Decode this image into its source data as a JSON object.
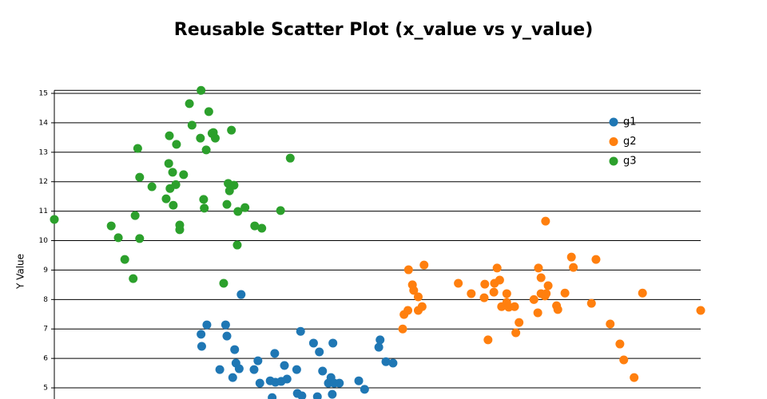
{
  "chart_data": {
    "type": "scatter",
    "title": "Reusable Scatter Plot (x_value vs y_value)",
    "ylabel": "Y Value",
    "xlim": [
      0,
      100
    ],
    "ylim": [
      4.5,
      15.1
    ],
    "yticks": [
      5,
      6,
      7,
      8,
      9,
      10,
      11,
      12,
      13,
      14,
      15
    ],
    "grid": true,
    "legend": "top-right",
    "series": [
      {
        "name": "g1",
        "color": "#1f77b4",
        "x": [
          28.9,
          22.7,
          23.6,
          22.8,
          26.5,
          26.7,
          27.9,
          28.1,
          25.6,
          27.6,
          28.6,
          30.9,
          31.5,
          31.8,
          33.4,
          34.1,
          34.2,
          35.1,
          35.6,
          36.0,
          37.5,
          38.1,
          40.1,
          41.0,
          41.5,
          42.4,
          42.8,
          43.1,
          43.3,
          44.1,
          47.1,
          48.0,
          50.2,
          50.4,
          51.3,
          52.4,
          33.7,
          37.6,
          38.3,
          40.7,
          43.0
        ],
        "y": [
          8.17,
          6.82,
          7.14,
          6.41,
          7.14,
          6.76,
          6.3,
          5.84,
          5.62,
          5.35,
          5.65,
          5.62,
          5.92,
          5.16,
          5.24,
          6.17,
          5.19,
          5.22,
          5.76,
          5.3,
          5.62,
          6.92,
          6.52,
          6.22,
          5.57,
          5.16,
          5.35,
          6.52,
          5.16,
          5.16,
          5.24,
          4.95,
          6.38,
          6.63,
          5.89,
          5.84,
          4.67,
          4.81,
          4.73,
          4.7,
          4.78
        ]
      },
      {
        "name": "g2",
        "color": "#ff7f0e",
        "x": [
          53.9,
          54.1,
          54.7,
          54.8,
          55.4,
          55.6,
          56.3,
          56.3,
          56.9,
          57.2,
          62.5,
          64.5,
          66.5,
          66.6,
          67.1,
          68.0,
          68.1,
          68.5,
          68.9,
          69.2,
          70.0,
          70.0,
          70.3,
          71.2,
          71.4,
          71.9,
          74.2,
          74.8,
          74.9,
          75.3,
          75.3,
          75.9,
          76.0,
          76.1,
          76.4,
          77.7,
          77.9,
          79.0,
          80.0,
          80.3,
          83.1,
          83.8,
          86.0,
          87.5,
          88.1,
          89.7,
          91.0,
          100
        ],
        "y": [
          7.0,
          7.49,
          7.63,
          9.01,
          8.5,
          8.31,
          8.09,
          7.63,
          7.76,
          9.17,
          8.55,
          8.2,
          8.06,
          8.52,
          6.63,
          8.25,
          8.55,
          9.07,
          8.66,
          7.76,
          8.2,
          7.9,
          7.74,
          7.76,
          6.87,
          7.22,
          8.0,
          7.55,
          9.07,
          8.74,
          8.2,
          8.12,
          10.66,
          8.2,
          8.47,
          7.79,
          7.66,
          8.22,
          9.44,
          9.09,
          7.87,
          9.36,
          7.17,
          6.49,
          5.95,
          5.35,
          8.22,
          7.63
        ]
      },
      {
        "name": "g3",
        "color": "#2ca02c",
        "x": [
          0,
          8.8,
          9.9,
          10.9,
          12.2,
          12.5,
          12.9,
          13.2,
          13.2,
          15.1,
          17.3,
          17.7,
          17.8,
          17.9,
          18.3,
          18.4,
          18.8,
          18.9,
          19.4,
          19.4,
          20.0,
          20.9,
          21.3,
          22.6,
          22.7,
          23.1,
          23.2,
          23.5,
          23.9,
          24.4,
          24.6,
          24.9,
          26.2,
          26.7,
          26.9,
          27.1,
          27.4,
          27.8,
          28.3,
          28.4,
          29.5,
          31.0,
          32.1,
          35.0,
          36.5
        ],
        "y": [
          10.72,
          10.5,
          10.1,
          9.36,
          8.71,
          10.85,
          13.13,
          12.15,
          10.07,
          11.83,
          11.42,
          12.62,
          13.56,
          11.77,
          12.32,
          11.2,
          11.9,
          13.27,
          10.53,
          10.37,
          12.24,
          14.65,
          13.92,
          13.48,
          15.1,
          11.4,
          11.1,
          13.08,
          14.38,
          13.64,
          13.67,
          13.48,
          8.55,
          11.23,
          11.94,
          11.69,
          13.75,
          11.88,
          9.85,
          10.99,
          11.12,
          10.5,
          10.42,
          11.02,
          12.8
        ]
      }
    ]
  }
}
